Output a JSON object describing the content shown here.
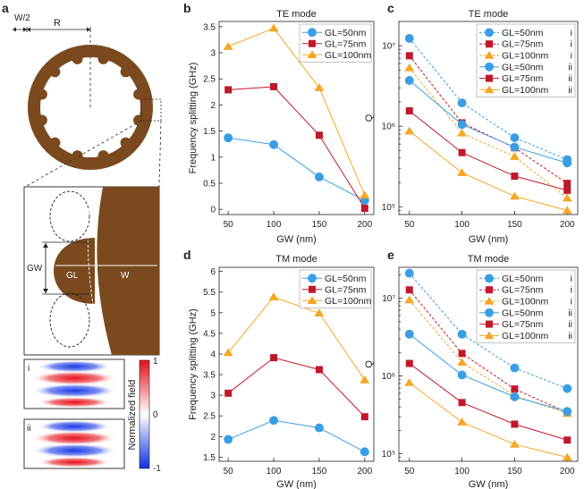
{
  "panel_labels": {
    "a": "a",
    "b": "b",
    "c": "c",
    "d": "d",
    "e": "e"
  },
  "schematic": {
    "w2_label": "W/2",
    "r_label": "R",
    "gw_label": "GW",
    "gl_label": "GL",
    "w_label": "W",
    "inset_i": "i",
    "inset_ii": "ii",
    "colorbar_label": "Normalized field",
    "colorbar_ticks": [
      "1",
      "0",
      "-1"
    ],
    "ring_color": "#7a4a1e"
  },
  "colors": {
    "GL50": "#3a9ee4",
    "GL75": "#c0182b",
    "GL100": "#f5a623"
  },
  "chart_data": [
    {
      "id": "b",
      "type": "line",
      "title": "TE mode",
      "xlabel": "GW (nm)",
      "ylabel": "Frequency splitting (GHz)",
      "x": [
        50,
        100,
        150,
        200
      ],
      "xlim": [
        40,
        210
      ],
      "ylim": [
        -0.1,
        3.6
      ],
      "yticks": [
        0,
        0.5,
        1,
        1.5,
        2,
        2.5,
        3,
        3.5
      ],
      "ytick_labels": [
        "0",
        "0.5",
        "1",
        "1.5",
        "2",
        "2.5",
        "3",
        "3.5"
      ],
      "legend_position": "top-right",
      "series": [
        {
          "name": "GL=50nm",
          "values": [
            1.37,
            1.24,
            0.62,
            0.17
          ],
          "color": "#3a9ee4",
          "marker": "circle",
          "dash": "solid"
        },
        {
          "name": "GL=75nm",
          "values": [
            2.29,
            2.35,
            1.42,
            0.02
          ],
          "color": "#c0182b",
          "marker": "square",
          "dash": "solid"
        },
        {
          "name": "GL=100nm",
          "values": [
            3.12,
            3.47,
            2.33,
            0.27
          ],
          "color": "#f5a623",
          "marker": "triangle",
          "dash": "solid"
        }
      ]
    },
    {
      "id": "c",
      "type": "line",
      "title": "TE mode",
      "xlabel": "GW (nm)",
      "ylabel": "Q",
      "yscale": "log",
      "x": [
        50,
        100,
        150,
        200
      ],
      "xlim": [
        40,
        210
      ],
      "ylim": [
        80000,
        20000000
      ],
      "yticks": [
        100000,
        1000000,
        10000000
      ],
      "ytick_labels": [
        "10⁵",
        "10⁶",
        "10⁷"
      ],
      "legend_position": "top-right",
      "series": [
        {
          "name": "GL=50nm",
          "suffix": "i",
          "values": [
            12300000,
            1950000,
            720000,
            385000
          ],
          "color": "#3a9ee4",
          "marker": "circle",
          "dash": "dashed"
        },
        {
          "name": "GL=75nm",
          "suffix": "i",
          "values": [
            7500000,
            1100000,
            540000,
            195000
          ],
          "color": "#c0182b",
          "marker": "square",
          "dash": "dashed"
        },
        {
          "name": "GL=100nm",
          "suffix": "i",
          "values": [
            5300000,
            820000,
            420000,
            128000
          ],
          "color": "#f5a623",
          "marker": "triangle",
          "dash": "dashed"
        },
        {
          "name": "GL=50nm",
          "suffix": "ii",
          "values": [
            3700000,
            1050000,
            550000,
            350000
          ],
          "color": "#3a9ee4",
          "marker": "circle",
          "dash": "solid"
        },
        {
          "name": "GL=75nm",
          "suffix": "ii",
          "values": [
            1550000,
            470000,
            240000,
            160000
          ],
          "color": "#c0182b",
          "marker": "square",
          "dash": "solid"
        },
        {
          "name": "GL=100nm",
          "suffix": "ii",
          "values": [
            870000,
            265000,
            135000,
            90000
          ],
          "color": "#f5a623",
          "marker": "triangle",
          "dash": "solid"
        }
      ]
    },
    {
      "id": "d",
      "type": "line",
      "title": "TM mode",
      "xlabel": "GW (nm)",
      "ylabel": "Frequency splitting (GHz)",
      "x": [
        50,
        100,
        150,
        200
      ],
      "xlim": [
        40,
        210
      ],
      "ylim": [
        1.4,
        6.1
      ],
      "yticks": [
        1.5,
        2,
        2.5,
        3,
        3.5,
        4,
        4.5,
        5,
        5.5,
        6
      ],
      "ytick_labels": [
        "1.5",
        "2",
        "2.5",
        "3",
        "3.5",
        "4",
        "4.5",
        "5",
        "5.5",
        "6"
      ],
      "legend_position": "top-right",
      "series": [
        {
          "name": "GL=50nm",
          "values": [
            1.93,
            2.39,
            2.21,
            1.63
          ],
          "color": "#3a9ee4",
          "marker": "circle",
          "dash": "solid"
        },
        {
          "name": "GL=75nm",
          "values": [
            3.05,
            3.91,
            3.62,
            2.48
          ],
          "color": "#c0182b",
          "marker": "square",
          "dash": "solid"
        },
        {
          "name": "GL=100nm",
          "values": [
            4.03,
            5.38,
            4.99,
            3.37
          ],
          "color": "#f5a623",
          "marker": "triangle",
          "dash": "solid"
        }
      ]
    },
    {
      "id": "e",
      "type": "line",
      "title": "TM mode",
      "xlabel": "GW (nm)",
      "ylabel": "Q",
      "yscale": "log",
      "x": [
        50,
        100,
        150,
        200
      ],
      "xlim": [
        40,
        210
      ],
      "ylim": [
        80000,
        25000000
      ],
      "yticks": [
        100000,
        1000000,
        10000000
      ],
      "ytick_labels": [
        "10⁵",
        "10⁶",
        "10⁷"
      ],
      "legend_position": "top-right",
      "series": [
        {
          "name": "GL=50nm",
          "suffix": "i",
          "values": [
            21000000,
            3450000,
            1270000,
            690000
          ],
          "color": "#3a9ee4",
          "marker": "circle",
          "dash": "dashed"
        },
        {
          "name": "GL=75nm",
          "suffix": "i",
          "values": [
            12800000,
            1950000,
            680000,
            340000
          ],
          "color": "#c0182b",
          "marker": "square",
          "dash": "dashed"
        },
        {
          "name": "GL=100nm",
          "suffix": "i",
          "values": [
            9500000,
            1500000,
            560000,
            330000
          ],
          "color": "#f5a623",
          "marker": "triangle",
          "dash": "dashed"
        },
        {
          "name": "GL=50nm",
          "suffix": "ii",
          "values": [
            3450000,
            1030000,
            540000,
            350000
          ],
          "color": "#3a9ee4",
          "marker": "circle",
          "dash": "solid"
        },
        {
          "name": "GL=75nm",
          "suffix": "ii",
          "values": [
            1450000,
            455000,
            240000,
            150000
          ],
          "color": "#c0182b",
          "marker": "square",
          "dash": "solid"
        },
        {
          "name": "GL=100nm",
          "suffix": "ii",
          "values": [
            820000,
            255000,
            132000,
            90000
          ],
          "color": "#f5a623",
          "marker": "triangle",
          "dash": "solid"
        }
      ]
    }
  ]
}
